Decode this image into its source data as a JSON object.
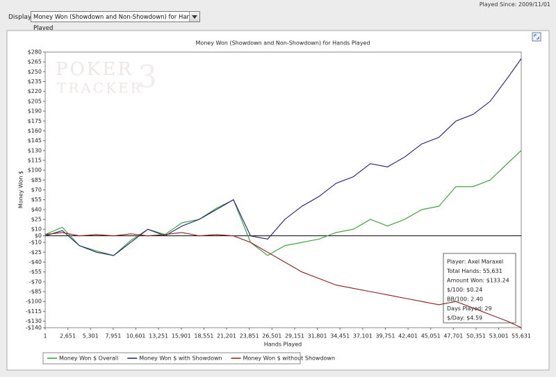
{
  "header": {
    "played_since": "Played Since: 2009/11/01",
    "display_label": "Display:",
    "display_value": "Money Won (Showdown and Non-Showdown) for Hands Played"
  },
  "watermark": {
    "line1": "POKER",
    "line2": "TRACKER",
    "logo": "3"
  },
  "chart_data": {
    "type": "line",
    "title": "Money Won (Showdown and Non-Showdown) for Hands Played",
    "x_label": "Hands Played",
    "y_label": "Money Won $",
    "x": [
      1,
      2000,
      4000,
      6000,
      8000,
      10000,
      12000,
      14000,
      16000,
      18000,
      20000,
      22000,
      24000,
      26000,
      28000,
      30000,
      32000,
      34000,
      36000,
      38000,
      40000,
      42000,
      44000,
      46000,
      48000,
      50000,
      52000,
      54000,
      55631
    ],
    "series": [
      {
        "name": "Money Won $ Overall",
        "color": "#2e9e2e",
        "values": [
          2,
          13,
          -15,
          -23,
          -30,
          -7,
          10,
          2,
          20,
          25,
          42,
          55,
          -10,
          -30,
          -15,
          -10,
          -5,
          5,
          10,
          25,
          15,
          25,
          40,
          45,
          75,
          75,
          85,
          110,
          130
        ]
      },
      {
        "name": "Money Won $ with Showdown",
        "color": "#1c1c7a",
        "values": [
          0,
          8,
          -15,
          -25,
          -30,
          -10,
          10,
          0,
          15,
          25,
          40,
          55,
          0,
          -5,
          25,
          45,
          60,
          80,
          90,
          110,
          105,
          120,
          140,
          150,
          175,
          185,
          205,
          240,
          270
        ]
      },
      {
        "name": "Money Won $ without Showdown",
        "color": "#8b1c1c",
        "values": [
          2,
          5,
          0,
          2,
          0,
          3,
          0,
          2,
          5,
          0,
          2,
          0,
          -10,
          -25,
          -40,
          -55,
          -65,
          -75,
          -80,
          -85,
          -90,
          -95,
          -100,
          -105,
          -100,
          -110,
          -120,
          -130,
          -140
        ]
      }
    ],
    "xlim": [
      1,
      55631
    ],
    "xticks": [
      1,
      {
        "value": 2651,
        "label": "2,651"
      },
      {
        "value": 5301,
        "label": "5,301"
      },
      {
        "value": 7951,
        "label": "7,951"
      },
      {
        "value": 10601,
        "label": "10,601"
      },
      {
        "value": 13251,
        "label": "13,251"
      },
      {
        "value": 15901,
        "label": "15,901"
      },
      {
        "value": 18551,
        "label": "18,551"
      },
      {
        "value": 21201,
        "label": "21,201"
      },
      {
        "value": 23851,
        "label": "23,851"
      },
      {
        "value": 26501,
        "label": "26,501"
      },
      {
        "value": 29151,
        "label": "29,151"
      },
      {
        "value": 31801,
        "label": "31,801"
      },
      {
        "value": 34451,
        "label": "34,451"
      },
      {
        "value": 37101,
        "label": "37,101"
      },
      {
        "value": 39751,
        "label": "39,751"
      },
      {
        "value": 42401,
        "label": "42,401"
      },
      {
        "value": 45051,
        "label": "45,051"
      },
      {
        "value": 47701,
        "label": "47,701"
      },
      {
        "value": 50351,
        "label": "50,351"
      },
      {
        "value": 53001,
        "label": "53,001"
      },
      {
        "value": 55631,
        "label": "55,631"
      }
    ],
    "ylim": [
      -140,
      280
    ],
    "yticks": [
      {
        "value": 280,
        "label": "$280"
      },
      {
        "value": 265,
        "label": "$265"
      },
      {
        "value": 250,
        "label": "$250"
      },
      {
        "value": 235,
        "label": "$235"
      },
      {
        "value": 220,
        "label": "$220"
      },
      {
        "value": 205,
        "label": "$205"
      },
      {
        "value": 190,
        "label": "$190"
      },
      {
        "value": 175,
        "label": "$175"
      },
      {
        "value": 160,
        "label": "$160"
      },
      {
        "value": 145,
        "label": "$145"
      },
      {
        "value": 130,
        "label": "$130"
      },
      {
        "value": 115,
        "label": "$115"
      },
      {
        "value": 100,
        "label": "$100"
      },
      {
        "value": 85,
        "label": "$85"
      },
      {
        "value": 70,
        "label": "$70"
      },
      {
        "value": 55,
        "label": "$55"
      },
      {
        "value": 40,
        "label": "$40"
      },
      {
        "value": 25,
        "label": "$25"
      },
      {
        "value": 10,
        "label": "$10"
      },
      {
        "value": 0,
        "label": "$0"
      },
      {
        "value": -10,
        "label": "-$10"
      },
      {
        "value": -25,
        "label": "-$25"
      },
      {
        "value": -40,
        "label": "-$40"
      },
      {
        "value": -55,
        "label": "-$55"
      },
      {
        "value": -70,
        "label": "-$70"
      },
      {
        "value": -85,
        "label": "-$85"
      },
      {
        "value": -100,
        "label": "-$100"
      },
      {
        "value": -115,
        "label": "-$115"
      },
      {
        "value": -130,
        "label": "-$130"
      },
      {
        "value": -140,
        "label": "-$140"
      }
    ],
    "grid": false,
    "zero_line": true,
    "legend": "bottom-left"
  },
  "stats": [
    "Player: Axel Maraxel",
    "Total Hands: 55,631",
    "Amount Won: $133.24",
    "$/100: $0.24",
    "BB/100: 2.40",
    "Days Played: 29",
    "$/Day: $4.59"
  ]
}
